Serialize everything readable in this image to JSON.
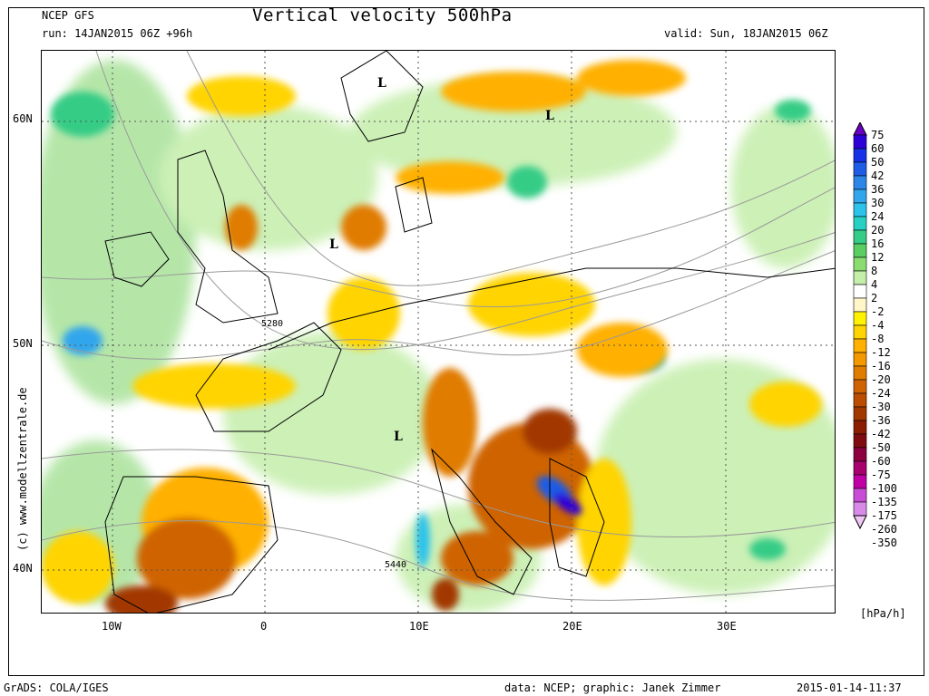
{
  "header": {
    "model": "NCEP GFS",
    "run": "run: 14JAN2015 06Z +96h",
    "title": "Vertical velocity 500hPa",
    "valid": "valid: Sun, 18JAN2015 06Z"
  },
  "axes": {
    "lat_ticks": [
      "60N",
      "50N",
      "40N"
    ],
    "lon_ticks": [
      "10W",
      "0",
      "10E",
      "20E",
      "30E"
    ]
  },
  "map_labels": {
    "lows": [
      "L",
      "L",
      "L",
      "L"
    ],
    "contours": [
      "5280",
      "5440"
    ]
  },
  "legend": {
    "values": [
      "75",
      "60",
      "50",
      "42",
      "36",
      "30",
      "24",
      "20",
      "16",
      "12",
      "8",
      "4",
      "2",
      "-2",
      "-4",
      "-8",
      "-12",
      "-16",
      "-20",
      "-24",
      "-30",
      "-36",
      "-42",
      "-50",
      "-60",
      "-75",
      "-100",
      "-135",
      "-175",
      "-260",
      "-350"
    ],
    "colors": [
      "#6a00c8",
      "#2d00d8",
      "#1530e6",
      "#1f5ce6",
      "#2b86e8",
      "#30a6ec",
      "#2cc2ea",
      "#28d0c4",
      "#34cc86",
      "#5acd63",
      "#8bdc70",
      "#c4eeaa",
      "#ffffff",
      "#fff7c8",
      "#fff200",
      "#ffd400",
      "#ffb000",
      "#f49800",
      "#e07c00",
      "#cf6300",
      "#bb4c00",
      "#a23800",
      "#8c1d00",
      "#7f0a10",
      "#8c0040",
      "#a8006c",
      "#c000a4",
      "#c84cd6",
      "#d88ae8",
      "#efc6f6"
    ],
    "unit": "[hPa/h]"
  },
  "footer": {
    "left": "GrADS: COLA/IGES",
    "credit": "data: NCEP; graphic: Janek Zimmer",
    "timestamp": "2015-01-14-11:37"
  },
  "side_credit": "(c) www.modellzentrale.de"
}
